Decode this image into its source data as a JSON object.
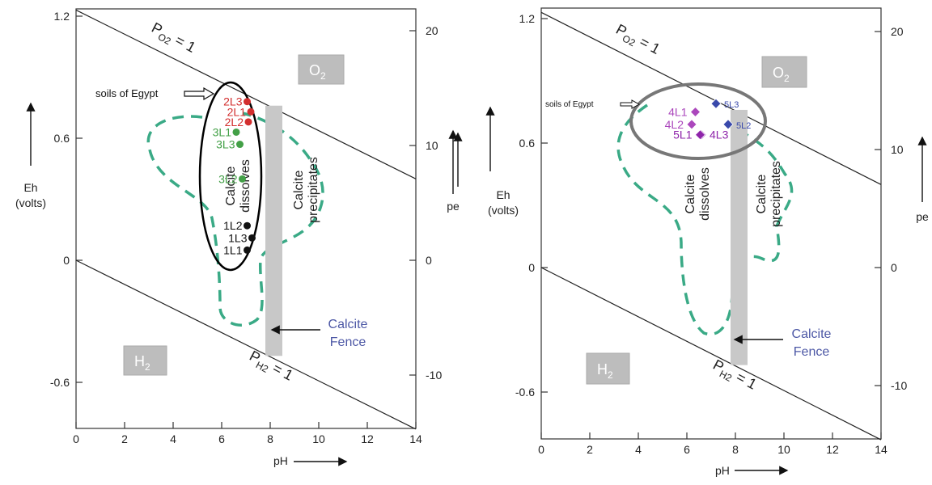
{
  "chart_data": [
    {
      "type": "scatter",
      "title": "",
      "xlabel": "pH",
      "ylabel_left": "Eh\n(volts)",
      "ylabel_right": "pe",
      "xlim": [
        0,
        14
      ],
      "ylim": [
        -0.8,
        1.23
      ],
      "x_ticks": [
        "0",
        "2",
        "4",
        "6",
        "8",
        "10",
        "12",
        "14"
      ],
      "y_ticks_left": [
        "-0.6",
        "0",
        "0.6",
        "1.2"
      ],
      "y_ticks_right": [
        "-10",
        "0",
        "10",
        "20"
      ],
      "grid": false,
      "o2_line": {
        "label_main": "P",
        "label_sub": "O2",
        "label_eq": " = 1",
        "points": [
          [
            0,
            1.23
          ],
          [
            14,
            0.4
          ]
        ]
      },
      "h2_line": {
        "label_main": "P",
        "label_sub": "H2",
        "label_eq": " = 1",
        "points": [
          [
            0,
            0.0
          ],
          [
            14,
            -0.83
          ]
        ]
      },
      "regions": {
        "o2": "O2",
        "h2": "H2",
        "o2_main": "O",
        "o2_sub": "2",
        "h2_main": "H",
        "h2_sub": "2"
      },
      "calcite_fence": {
        "label_line1": "Calcite",
        "label_line2": "Fence",
        "ph_range": [
          7.8,
          8.5
        ],
        "eh_range": [
          -0.47,
          0.76
        ],
        "color": "#c8c8c8"
      },
      "labels": {
        "dissolves_1": "Calcite",
        "dissolves_2": "dissolves",
        "precipitates_1": "Calcite",
        "precipitates_2": "precipitates"
      },
      "ellipse_label": "soils of Egypt",
      "series": [
        {
          "name": "2L3",
          "x": 7.05,
          "y": 0.78,
          "color": "#d32f2f"
        },
        {
          "name": "2L1",
          "x": 7.2,
          "y": 0.73,
          "color": "#d32f2f"
        },
        {
          "name": "2L2",
          "x": 7.1,
          "y": 0.68,
          "color": "#d32f2f"
        },
        {
          "name": "3L1",
          "x": 6.6,
          "y": 0.63,
          "color": "#43a047"
        },
        {
          "name": "3L3",
          "x": 6.75,
          "y": 0.57,
          "color": "#43a047"
        },
        {
          "name": "3L2",
          "x": 6.85,
          "y": 0.4,
          "color": "#43a047"
        },
        {
          "name": "1L2",
          "x": 7.05,
          "y": 0.17,
          "color": "#111111"
        },
        {
          "name": "1L3",
          "x": 7.25,
          "y": 0.11,
          "color": "#111111"
        },
        {
          "name": "1L1",
          "x": 7.05,
          "y": 0.05,
          "color": "#111111"
        }
      ]
    },
    {
      "type": "scatter",
      "title": "",
      "xlabel": "pH",
      "ylabel_left": "Eh\n(volts)",
      "ylabel_right": "pe",
      "xlim": [
        0,
        14
      ],
      "ylim": [
        -0.82,
        1.23
      ],
      "x_ticks": [
        "0",
        "2",
        "4",
        "6",
        "8",
        "10",
        "12",
        "14"
      ],
      "y_ticks_left": [
        "-0.6",
        "0",
        "0.6",
        "1.2"
      ],
      "y_ticks_right": [
        "-10",
        "0",
        "10",
        "20"
      ],
      "grid": false,
      "o2_line": {
        "label_main": "P",
        "label_sub": "O2",
        "label_eq": " = 1",
        "points": [
          [
            0,
            1.23
          ],
          [
            14,
            0.4
          ]
        ]
      },
      "h2_line": {
        "label_main": "P",
        "label_sub": "H2",
        "label_eq": " = 1",
        "points": [
          [
            0,
            0.0
          ],
          [
            14,
            -0.83
          ]
        ]
      },
      "regions": {
        "o2": "O2",
        "h2": "H2",
        "o2_main": "O",
        "o2_sub": "2",
        "h2_main": "H",
        "h2_sub": "2"
      },
      "calcite_fence": {
        "label_line1": "Calcite",
        "label_line2": "Fence",
        "ph_range": [
          7.8,
          8.5
        ],
        "eh_range": [
          -0.47,
          0.76
        ],
        "color": "#c8c8c8"
      },
      "labels": {
        "dissolves_1": "Calcite",
        "dissolves_2": "dissolves",
        "precipitates_1": "Calcite",
        "precipitates_2": "precipitates"
      },
      "ellipse_label": "soils of Egypt",
      "series": [
        {
          "name": "4L1",
          "x": 6.35,
          "y": 0.75,
          "color": "#ab47bc"
        },
        {
          "name": "5L3",
          "x": 7.2,
          "y": 0.79,
          "color": "#3949ab"
        },
        {
          "name": "4L2",
          "x": 6.2,
          "y": 0.69,
          "color": "#ab47bc"
        },
        {
          "name": "5L2",
          "x": 7.7,
          "y": 0.69,
          "color": "#3949ab"
        },
        {
          "name": "4L3",
          "x": 6.6,
          "y": 0.64,
          "color": "#8e24aa"
        },
        {
          "name": "5L1",
          "x": 6.55,
          "y": 0.64,
          "color": "#8e24aa"
        }
      ]
    }
  ],
  "colors": {
    "boundary_dash": "#3aaa86",
    "axis": "#333333",
    "tick_text": "#222222",
    "region_box": "#bdbdbd",
    "fence_label": "#4c57a5"
  }
}
